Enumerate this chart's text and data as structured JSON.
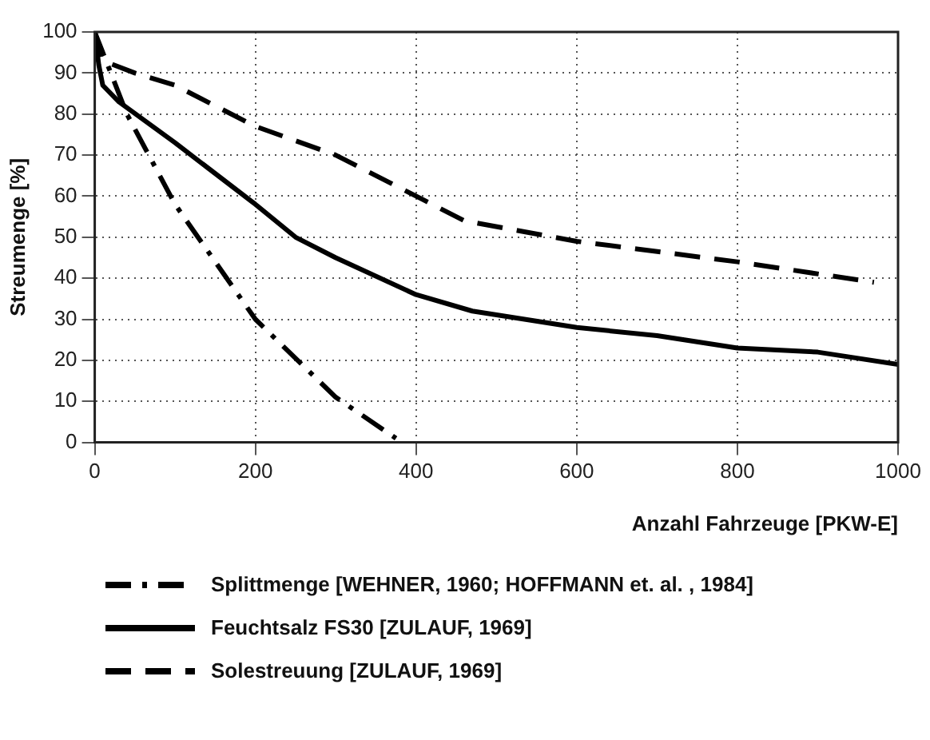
{
  "chart_data": {
    "type": "line",
    "xlabel": "Anzahl Fahrzeuge [PKW-E]",
    "ylabel": "Streumenge [%]",
    "xlim": [
      0,
      1000
    ],
    "xticks": [
      0,
      200,
      400,
      600,
      800,
      1000
    ],
    "ylim": [
      0,
      100
    ],
    "yticks": [
      0,
      10,
      20,
      30,
      40,
      50,
      60,
      70,
      80,
      90,
      100
    ],
    "grid": true,
    "legend": "bottom",
    "marker": "none",
    "series": [
      {
        "name": "Splittmenge [WEHNER, 1960; HOFFMANN et. al. , 1984]",
        "color": "#000000",
        "line_style": "dashdot",
        "x": [
          0,
          10,
          40,
          100,
          200,
          300,
          375
        ],
        "values": [
          100,
          95,
          80,
          58,
          30,
          11,
          1
        ]
      },
      {
        "name": "Feuchtsalz FS30 [ZULAUF, 1969]",
        "color": "#000000",
        "line_style": "solid",
        "x": [
          0,
          5,
          10,
          30,
          100,
          200,
          250,
          300,
          400,
          470,
          600,
          700,
          800,
          900,
          1000
        ],
        "values": [
          100,
          92,
          87,
          83,
          73,
          58,
          50,
          45,
          36,
          32,
          28,
          26,
          23,
          22,
          19
        ]
      },
      {
        "name": "Solestreuung [ZULAUF, 1969]",
        "color": "#000000",
        "line_style": "dashed",
        "x": [
          0,
          10,
          50,
          100,
          200,
          300,
          400,
          460,
          600,
          800,
          970
        ],
        "values": [
          100,
          93,
          90,
          87,
          77,
          70,
          60,
          54,
          49,
          44,
          39
        ]
      }
    ]
  }
}
